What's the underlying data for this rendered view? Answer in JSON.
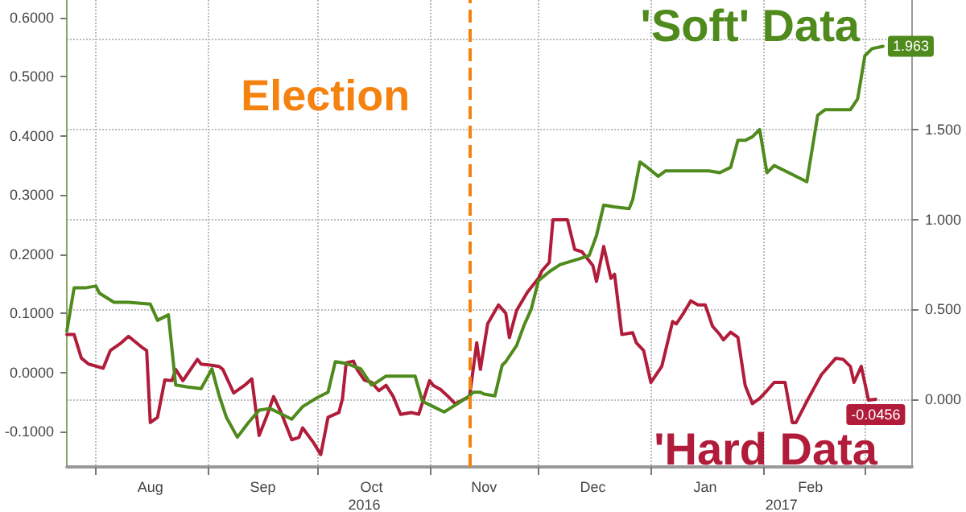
{
  "chart_data": {
    "type": "line",
    "series": [
      {
        "name": "'Hard Data",
        "color": "#b01c3a",
        "axis": "y",
        "x": [
          "2016-07-24",
          "2016-07-26",
          "2016-07-28",
          "2016-07-30",
          "2016-08-03",
          "2016-08-05",
          "2016-08-08",
          "2016-08-10",
          "2016-08-14",
          "2016-08-15",
          "2016-08-16",
          "2016-08-18",
          "2016-08-20",
          "2016-08-22",
          "2016-08-23",
          "2016-08-25",
          "2016-08-29",
          "2016-08-30",
          "2016-09-02",
          "2016-09-04",
          "2016-09-05",
          "2016-09-08",
          "2016-09-11",
          "2016-09-13",
          "2016-09-15",
          "2016-09-17",
          "2016-09-19",
          "2016-09-21",
          "2016-09-24",
          "2016-09-26",
          "2016-09-27",
          "2016-09-30",
          "2016-10-02",
          "2016-10-04",
          "2016-10-07",
          "2016-10-08",
          "2016-10-09",
          "2016-10-11",
          "2016-10-12",
          "2016-10-14",
          "2016-10-16",
          "2016-10-18",
          "2016-10-20",
          "2016-10-22",
          "2016-10-24",
          "2016-10-27",
          "2016-10-29",
          "2016-11-01",
          "2016-11-02",
          "2016-11-04",
          "2016-11-06",
          "2016-11-08",
          "2016-11-12",
          "2016-11-14",
          "2016-11-15",
          "2016-11-17",
          "2016-11-20",
          "2016-11-22",
          "2016-11-23",
          "2016-11-25",
          "2016-11-28",
          "2016-12-01",
          "2016-12-02",
          "2016-12-04",
          "2016-12-05",
          "2016-12-09",
          "2016-12-11",
          "2016-12-13",
          "2016-12-16",
          "2016-12-17",
          "2016-12-19",
          "2016-12-21",
          "2016-12-22",
          "2016-12-24",
          "2016-12-27",
          "2016-12-28",
          "2016-12-30",
          "2017-01-01",
          "2017-01-04",
          "2017-01-07",
          "2017-01-08",
          "2017-01-10",
          "2017-01-12",
          "2017-01-14",
          "2017-01-16",
          "2017-01-18",
          "2017-01-20",
          "2017-01-21",
          "2017-01-23",
          "2017-01-25",
          "2017-01-27",
          "2017-01-29",
          "2017-01-31",
          "2017-02-02",
          "2017-02-04",
          "2017-02-07",
          "2017-02-09",
          "2017-02-10",
          "2017-02-13",
          "2017-02-17",
          "2017-02-21",
          "2017-02-23",
          "2017-02-25",
          "2017-02-26",
          "2017-02-28",
          "2017-03-02",
          "2017-03-04"
        ],
        "values": [
          0.064,
          0.064,
          0.024,
          0.014,
          0.007,
          0.037,
          0.05,
          0.061,
          0.041,
          0.037,
          -0.085,
          -0.076,
          -0.013,
          -0.014,
          0.005,
          -0.014,
          0.022,
          0.014,
          0.012,
          0.01,
          0.005,
          -0.035,
          -0.022,
          -0.011,
          -0.107,
          -0.076,
          -0.041,
          -0.067,
          -0.114,
          -0.11,
          -0.094,
          -0.119,
          -0.139,
          -0.076,
          -0.068,
          -0.044,
          0.016,
          0.019,
          0.005,
          -0.013,
          -0.017,
          -0.031,
          -0.022,
          -0.041,
          -0.071,
          -0.068,
          -0.071,
          -0.014,
          -0.022,
          -0.029,
          -0.04,
          -0.053,
          -0.041,
          0.05,
          0.005,
          0.082,
          0.114,
          0.1,
          0.059,
          0.105,
          0.136,
          0.159,
          0.172,
          0.186,
          0.258,
          0.258,
          0.208,
          0.204,
          0.181,
          0.154,
          0.213,
          0.159,
          0.166,
          0.064,
          0.067,
          0.05,
          0.037,
          -0.017,
          0.01,
          0.086,
          0.082,
          0.1,
          0.121,
          0.114,
          0.114,
          0.078,
          0.064,
          0.055,
          0.068,
          0.059,
          -0.022,
          -0.053,
          -0.044,
          -0.031,
          -0.017,
          -0.017,
          -0.085,
          -0.085,
          -0.049,
          -0.004,
          0.024,
          0.022,
          0.01,
          -0.017,
          0.01,
          -0.047,
          -0.0456
        ],
        "value_labels": [
          null,
          null,
          null,
          null,
          null,
          null,
          null,
          null,
          null,
          null,
          null,
          null,
          null,
          null,
          null,
          null,
          null,
          null,
          null,
          null,
          null,
          null,
          null,
          null,
          null,
          null,
          null,
          null,
          null,
          null,
          null,
          null,
          null,
          null,
          null,
          null,
          null,
          null,
          null,
          null,
          null,
          null,
          null,
          null,
          null,
          null,
          null,
          null,
          null,
          null,
          null,
          null,
          null,
          null,
          null,
          null,
          null,
          null,
          null,
          null,
          null,
          null,
          null,
          null,
          null,
          null,
          null,
          null,
          null,
          null,
          null,
          null,
          null,
          null,
          null,
          null,
          null,
          null,
          null,
          null,
          null,
          null,
          null,
          null,
          null,
          null,
          null,
          null,
          null,
          null,
          null,
          null,
          null,
          null,
          null,
          null,
          null,
          null,
          null,
          null,
          null,
          null,
          null,
          null,
          null,
          null,
          "-0.0456"
        ]
      },
      {
        "name": "'Soft' Data",
        "color": "#4f8a1c",
        "axis": "y2",
        "x": [
          "2016-07-24",
          "2016-07-26",
          "2016-07-29",
          "2016-08-01",
          "2016-08-02",
          "2016-08-06",
          "2016-08-10",
          "2016-08-16",
          "2016-08-18",
          "2016-08-21",
          "2016-08-23",
          "2016-08-26",
          "2016-08-30",
          "2016-09-02",
          "2016-09-04",
          "2016-09-06",
          "2016-09-09",
          "2016-09-12",
          "2016-09-15",
          "2016-09-18",
          "2016-09-21",
          "2016-09-24",
          "2016-09-27",
          "2016-10-01",
          "2016-10-04",
          "2016-10-06",
          "2016-10-09",
          "2016-10-13",
          "2016-10-16",
          "2016-10-17",
          "2016-10-20",
          "2016-10-23",
          "2016-10-28",
          "2016-10-30",
          "2016-11-02",
          "2016-11-05",
          "2016-11-09",
          "2016-11-12",
          "2016-11-13",
          "2016-11-15",
          "2016-11-16",
          "2016-11-19",
          "2016-11-21",
          "2016-11-22",
          "2016-11-25",
          "2016-11-27",
          "2016-11-29",
          "2016-12-01",
          "2016-12-04",
          "2016-12-07",
          "2016-12-12",
          "2016-12-15",
          "2016-12-17",
          "2016-12-19",
          "2016-12-22",
          "2016-12-26",
          "2016-12-27",
          "2016-12-29",
          "2016-12-31",
          "2017-01-03",
          "2017-01-05",
          "2017-01-07",
          "2017-01-17",
          "2017-01-20",
          "2017-01-23",
          "2017-01-25",
          "2017-01-27",
          "2017-01-29",
          "2017-01-31",
          "2017-02-02",
          "2017-02-04",
          "2017-02-07",
          "2017-02-13",
          "2017-02-16",
          "2017-02-18",
          "2017-02-25",
          "2017-02-27",
          "2017-03-01",
          "2017-03-03",
          "2017-03-06"
        ],
        "values": [
          0.38,
          0.62,
          0.62,
          0.63,
          0.59,
          0.54,
          0.54,
          0.53,
          0.44,
          0.47,
          0.08,
          0.07,
          0.06,
          0.17,
          0.02,
          -0.1,
          -0.21,
          -0.13,
          -0.06,
          -0.05,
          -0.08,
          -0.11,
          -0.04,
          0.01,
          0.04,
          0.21,
          0.2,
          0.17,
          0.08,
          0.09,
          0.13,
          0.13,
          0.13,
          -0.01,
          -0.04,
          -0.07,
          -0.02,
          0.02,
          0.04,
          0.04,
          0.03,
          0.02,
          0.19,
          0.21,
          0.3,
          0.41,
          0.5,
          0.66,
          0.71,
          0.75,
          0.78,
          0.8,
          0.91,
          1.08,
          1.07,
          1.06,
          1.11,
          1.32,
          1.29,
          1.24,
          1.27,
          1.27,
          1.27,
          1.26,
          1.29,
          1.44,
          1.44,
          1.46,
          1.5,
          1.26,
          1.3,
          1.27,
          1.21,
          1.58,
          1.61,
          1.61,
          1.67,
          1.91,
          1.95,
          1.963
        ],
        "value_labels": [
          null,
          null,
          null,
          null,
          null,
          null,
          null,
          null,
          null,
          null,
          null,
          null,
          null,
          null,
          null,
          null,
          null,
          null,
          null,
          null,
          null,
          null,
          null,
          null,
          null,
          null,
          null,
          null,
          null,
          null,
          null,
          null,
          null,
          null,
          null,
          null,
          null,
          null,
          null,
          null,
          null,
          null,
          null,
          null,
          null,
          null,
          null,
          null,
          null,
          null,
          null,
          null,
          null,
          null,
          null,
          null,
          null,
          null,
          null,
          null,
          null,
          null,
          null,
          null,
          null,
          null,
          null,
          null,
          null,
          null,
          null,
          null,
          null,
          null,
          null,
          null,
          null,
          null,
          null,
          "1.963"
        ]
      }
    ],
    "xlim": [
      "2016-07-24",
      "2017-03-14"
    ],
    "xticks": [
      {
        "value": "2016-08-01",
        "label": null
      },
      {
        "value": "2016-08-16",
        "label": "Aug"
      },
      {
        "value": "2016-09-01",
        "label": null
      },
      {
        "value": "2016-09-16",
        "label": "Sep"
      },
      {
        "value": "2016-10-01",
        "label": null
      },
      {
        "value": "2016-10-16",
        "label": "Oct"
      },
      {
        "value": "2016-11-01",
        "label": null
      },
      {
        "value": "2016-11-16",
        "label": "Nov"
      },
      {
        "value": "2016-12-01",
        "label": null
      },
      {
        "value": "2016-12-16",
        "label": "Dec"
      },
      {
        "value": "2017-01-01",
        "label": null
      },
      {
        "value": "2017-01-16",
        "label": "Jan"
      },
      {
        "value": "2017-02-01",
        "label": null
      },
      {
        "value": "2017-02-14",
        "label": "Feb"
      },
      {
        "value": "2017-03-01",
        "label": null
      }
    ],
    "ylim": [
      -0.16,
      0.63
    ],
    "yticks": [
      {
        "value": -0.1,
        "label": "-0.1000"
      },
      {
        "value": 0,
        "label": "0.0000"
      },
      {
        "value": 0.1,
        "label": "0.1000"
      },
      {
        "value": 0.2,
        "label": "0.2000"
      },
      {
        "value": 0.3,
        "label": "0.3000"
      },
      {
        "value": 0.4,
        "label": "0.4000"
      },
      {
        "value": 0.5,
        "label": "0.5000"
      },
      {
        "value": 0.6,
        "label": "0.6000"
      }
    ],
    "y2lim": [
      -0.375,
      2.22
    ],
    "y2ticks": [
      {
        "value": 0,
        "label": "0.000"
      },
      {
        "value": 0.5,
        "label": "0.500"
      },
      {
        "value": 1,
        "label": "1.000"
      },
      {
        "value": 1.5,
        "label": "1.500"
      },
      {
        "value": 2,
        "label": null
      }
    ],
    "ref_lines": [
      {
        "axis": "x",
        "value": "2016-11-12",
        "label": "Election",
        "color": "#f5820f",
        "line_style": "dashed"
      }
    ],
    "x2lim": [
      "2016-07-24",
      "2017-03-14"
    ],
    "x2ticks": [
      {
        "value": "2016-10-14",
        "label": "2016"
      },
      {
        "value": "2017-02-06",
        "label": "2017"
      }
    ],
    "grid": true,
    "legend": "right",
    "marker": "none",
    "line_style": "solid"
  }
}
